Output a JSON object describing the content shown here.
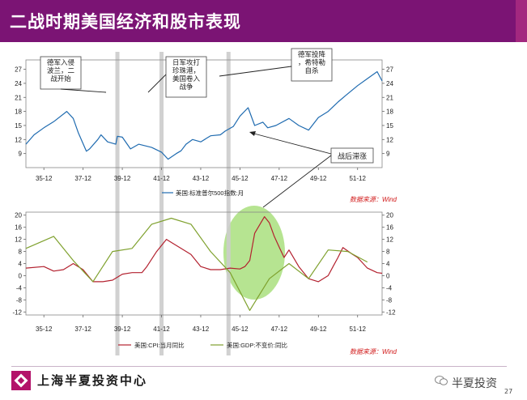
{
  "slide": {
    "title": "二战时期美国经济和股市表现",
    "organization": "上海半夏投资中心",
    "wechat_label": "半夏投资",
    "page_number": "27"
  },
  "colors": {
    "header": "#7b1474",
    "sp500": "#1f6bb0",
    "cpi": "#b3212f",
    "gdp": "#7fa12e",
    "source": "#d11a1a",
    "highlight": "#a9df7e",
    "bands": "#cccccc"
  },
  "chart_data": [
    {
      "type": "line",
      "name": "top",
      "x_tick_labels": [
        "35-12",
        "37-12",
        "39-12",
        "41-12",
        "43-12",
        "45-12",
        "47-12",
        "49-12",
        "51-12"
      ],
      "y_ticks": [
        9,
        12,
        15,
        18,
        21,
        24,
        27
      ],
      "ylim": [
        6,
        29
      ],
      "x_range": [
        "1935-01",
        "1953-03"
      ],
      "legend": "美国:标准普尔500指数:月",
      "source": "数据来源：Wind",
      "series": [
        {
          "name": "美国:标准普尔500指数:月",
          "points": [
            [
              "1935-01",
              11.0
            ],
            [
              "1935-06",
              13.0
            ],
            [
              "1935-12",
              14.5
            ],
            [
              "1936-06",
              15.8
            ],
            [
              "1937-02",
              18.0
            ],
            [
              "1937-06",
              16.5
            ],
            [
              "1937-09",
              13.5
            ],
            [
              "1938-02",
              9.5
            ],
            [
              "1938-04",
              10.0
            ],
            [
              "1938-09",
              12.0
            ],
            [
              "1938-11",
              13.0
            ],
            [
              "1939-03",
              11.5
            ],
            [
              "1939-08",
              11.0
            ],
            [
              "1939-09",
              12.7
            ],
            [
              "1939-12",
              12.5
            ],
            [
              "1940-05",
              10.0
            ],
            [
              "1940-10",
              11.0
            ],
            [
              "1941-06",
              10.3
            ],
            [
              "1941-12",
              9.3
            ],
            [
              "1942-04",
              7.8
            ],
            [
              "1942-09",
              9.0
            ],
            [
              "1942-12",
              9.6
            ],
            [
              "1943-03",
              11.0
            ],
            [
              "1943-07",
              12.0
            ],
            [
              "1943-12",
              11.5
            ],
            [
              "1944-06",
              12.8
            ],
            [
              "1944-12",
              13.0
            ],
            [
              "1945-03",
              13.8
            ],
            [
              "1945-08",
              14.8
            ],
            [
              "1945-12",
              17.0
            ],
            [
              "1946-05",
              18.8
            ],
            [
              "1946-09",
              15.0
            ],
            [
              "1947-02",
              15.7
            ],
            [
              "1947-05",
              14.5
            ],
            [
              "1947-10",
              15.0
            ],
            [
              "1948-06",
              16.5
            ],
            [
              "1948-12",
              15.0
            ],
            [
              "1949-06",
              14.0
            ],
            [
              "1949-12",
              16.7
            ],
            [
              "1950-06",
              18.0
            ],
            [
              "1950-12",
              20.0
            ],
            [
              "1951-05",
              21.5
            ],
            [
              "1951-12",
              23.5
            ],
            [
              "1952-06",
              25.0
            ],
            [
              "1952-12",
              26.5
            ],
            [
              "1953-03",
              24.5
            ]
          ]
        }
      ],
      "annotations": [
        {
          "text_lines": [
            "德军入侵",
            "波兰，二",
            "战开始"
          ],
          "date": "1939-09"
        },
        {
          "text_lines": [
            "日军攻打",
            "珍珠港，",
            "美国卷入",
            "战争"
          ],
          "date": "1941-12"
        },
        {
          "text_lines": [
            "德军投降",
            "，希特勒",
            "自杀"
          ],
          "date": "1945-05"
        }
      ]
    },
    {
      "type": "line",
      "name": "bottom",
      "x_tick_labels": [
        "35-12",
        "37-12",
        "39-12",
        "41-12",
        "43-12",
        "45-12",
        "47-12",
        "49-12",
        "51-12"
      ],
      "y_ticks": [
        -12,
        -8,
        -4,
        0,
        4,
        8,
        12,
        16,
        20
      ],
      "ylim": [
        -13,
        21
      ],
      "x_range": [
        "1935-01",
        "1953-03"
      ],
      "legend_entries": [
        "美国:CPI:当月同比",
        "美国:GDP:不变价:同比"
      ],
      "source": "数据来源：Wind",
      "series": [
        {
          "name": "美国:CPI:当月同比",
          "points": [
            [
              "1935-01",
              2.5
            ],
            [
              "1935-12",
              3.0
            ],
            [
              "1936-06",
              1.5
            ],
            [
              "1936-12",
              2.0
            ],
            [
              "1937-06",
              4.0
            ],
            [
              "1937-12",
              2.0
            ],
            [
              "1938-06",
              -2.0
            ],
            [
              "1938-12",
              -2.0
            ],
            [
              "1939-06",
              -1.5
            ],
            [
              "1939-12",
              0.5
            ],
            [
              "1940-06",
              1.0
            ],
            [
              "1940-12",
              1.0
            ],
            [
              "1941-03",
              3.0
            ],
            [
              "1941-09",
              8.0
            ],
            [
              "1942-03",
              12.0
            ],
            [
              "1942-06",
              11.0
            ],
            [
              "1942-12",
              9.0
            ],
            [
              "1943-06",
              7.0
            ],
            [
              "1943-12",
              3.0
            ],
            [
              "1944-06",
              2.0
            ],
            [
              "1944-12",
              2.0
            ],
            [
              "1945-06",
              2.5
            ],
            [
              "1945-12",
              2.2
            ],
            [
              "1946-03",
              3.0
            ],
            [
              "1946-06",
              5.0
            ],
            [
              "1946-09",
              14.0
            ],
            [
              "1947-03",
              19.5
            ],
            [
              "1947-06",
              17.5
            ],
            [
              "1947-09",
              13.0
            ],
            [
              "1947-12",
              9.5
            ],
            [
              "1948-03",
              6.0
            ],
            [
              "1948-06",
              8.5
            ],
            [
              "1948-12",
              3.0
            ],
            [
              "1949-06",
              -1.0
            ],
            [
              "1949-12",
              -2.0
            ],
            [
              "1950-06",
              0.0
            ],
            [
              "1950-09",
              3.0
            ],
            [
              "1950-12",
              6.0
            ],
            [
              "1951-03",
              9.3
            ],
            [
              "1951-09",
              7.0
            ],
            [
              "1951-12",
              6.0
            ],
            [
              "1952-06",
              2.5
            ],
            [
              "1952-12",
              1.0
            ],
            [
              "1953-03",
              0.8
            ]
          ]
        },
        {
          "name": "美国:GDP:不变价:同比",
          "points": [
            [
              "1935-01",
              9.0
            ],
            [
              "1936-06",
              13.0
            ],
            [
              "1937-06",
              5.0
            ],
            [
              "1938-06",
              -2.0
            ],
            [
              "1939-06",
              8.0
            ],
            [
              "1940-06",
              9.0
            ],
            [
              "1941-06",
              17.0
            ],
            [
              "1942-06",
              19.0
            ],
            [
              "1943-06",
              17.0
            ],
            [
              "1944-06",
              8.0
            ],
            [
              "1945-06",
              1.0
            ],
            [
              "1946-06",
              -11.5
            ],
            [
              "1947-06",
              -1.0
            ],
            [
              "1948-06",
              4.0
            ],
            [
              "1949-06",
              -1.0
            ],
            [
              "1950-06",
              8.5
            ],
            [
              "1951-06",
              8.0
            ],
            [
              "1952-06",
              4.5
            ]
          ]
        }
      ],
      "annotations": [
        {
          "text": "战后滞涨",
          "date": "1947-03"
        }
      ]
    }
  ]
}
